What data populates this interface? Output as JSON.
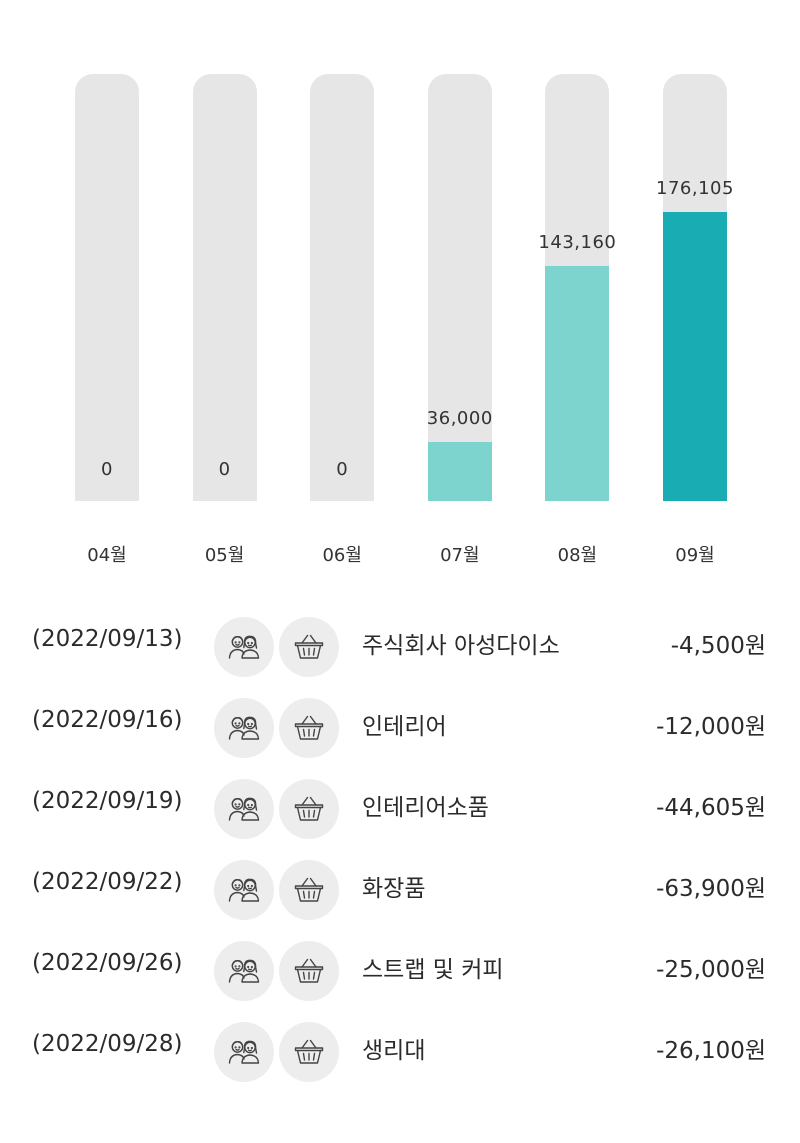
{
  "chart_data": {
    "type": "bar",
    "categories": [
      "04월",
      "05월",
      "06월",
      "07월",
      "08월",
      "09월"
    ],
    "values": [
      0,
      0,
      0,
      36000,
      143160,
      176105
    ],
    "value_labels": [
      "0",
      "0",
      "0",
      "36,000",
      "143,160",
      "176,105"
    ],
    "ylim": [
      0,
      260000
    ],
    "grid": false,
    "bar_colors": [
      "#e6e6e6",
      "#e6e6e6",
      "#e6e6e6",
      "#7dd4cf",
      "#7dd4cf",
      "#19adb3"
    ],
    "track_color": "#e6e6e6"
  },
  "transactions": [
    {
      "date": "(2022/09/13)",
      "people_icon": "couple-icon",
      "category_icon": "shopping-basket-icon",
      "name": "주식회사 아성다이소",
      "amount": "-4,500원"
    },
    {
      "date": "(2022/09/16)",
      "people_icon": "couple-icon",
      "category_icon": "shopping-basket-icon",
      "name": "인테리어",
      "amount": "-12,000원"
    },
    {
      "date": "(2022/09/19)",
      "people_icon": "couple-icon",
      "category_icon": "shopping-basket-icon",
      "name": "인테리어소품",
      "amount": "-44,605원"
    },
    {
      "date": "(2022/09/22)",
      "people_icon": "couple-icon",
      "category_icon": "shopping-basket-icon",
      "name": "화장품",
      "amount": "-63,900원"
    },
    {
      "date": "(2022/09/26)",
      "people_icon": "couple-icon",
      "category_icon": "shopping-basket-icon",
      "name": "스트랩 및 커피",
      "amount": "-25,000원"
    },
    {
      "date": "(2022/09/28)",
      "people_icon": "couple-icon",
      "category_icon": "shopping-basket-icon",
      "name": "생리대",
      "amount": "-26,100원"
    }
  ]
}
